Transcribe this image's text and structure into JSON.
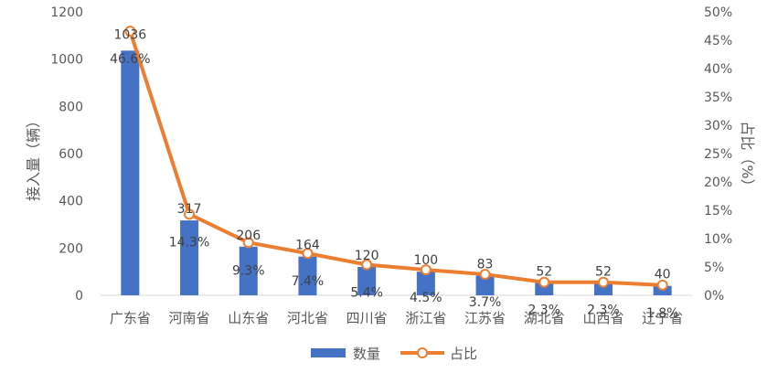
{
  "chart_data": {
    "type": "bar",
    "categories": [
      "广东省",
      "河南省",
      "山东省",
      "河北省",
      "四川省",
      "浙江省",
      "江苏省",
      "湖北省",
      "山西省",
      "辽宁省"
    ],
    "series": [
      {
        "name": "数量",
        "type": "bar",
        "axis": "left",
        "color": "#4472C4",
        "values": [
          1036,
          317,
          206,
          164,
          120,
          100,
          83,
          52,
          52,
          40
        ],
        "labels": [
          "1036",
          "317",
          "206",
          "164",
          "120",
          "100",
          "83",
          "52",
          "52",
          "40"
        ]
      },
      {
        "name": "占比",
        "type": "line",
        "axis": "right",
        "color": "#ED7D31",
        "values": [
          46.6,
          14.3,
          9.3,
          7.4,
          5.4,
          4.5,
          3.7,
          2.3,
          2.3,
          1.8
        ],
        "labels": [
          "46.6%",
          "14.3%",
          "9.3%",
          "7.4%",
          "5.4%",
          "4.5%",
          "3.7%",
          "2.3%",
          "2.3%",
          "1.8%"
        ]
      }
    ],
    "ylabel": "接入量（辆）",
    "y2label": "占比（%）",
    "ylim": [
      0,
      1200
    ],
    "yticks": [
      0,
      200,
      400,
      600,
      800,
      1000,
      1200
    ],
    "yticklabels": [
      "0",
      "200",
      "400",
      "600",
      "800",
      "1000",
      "1200"
    ],
    "y2lim": [
      0,
      50
    ],
    "y2ticks": [
      0,
      5,
      10,
      15,
      20,
      25,
      30,
      35,
      40,
      45,
      50
    ],
    "y2ticklabels": [
      "0%",
      "5%",
      "10%",
      "15%",
      "20%",
      "25%",
      "30%",
      "35%",
      "40%",
      "45%",
      "50%"
    ],
    "grid": false,
    "legend": "bottom-center",
    "legend_entries": [
      "数量",
      "占比"
    ]
  }
}
